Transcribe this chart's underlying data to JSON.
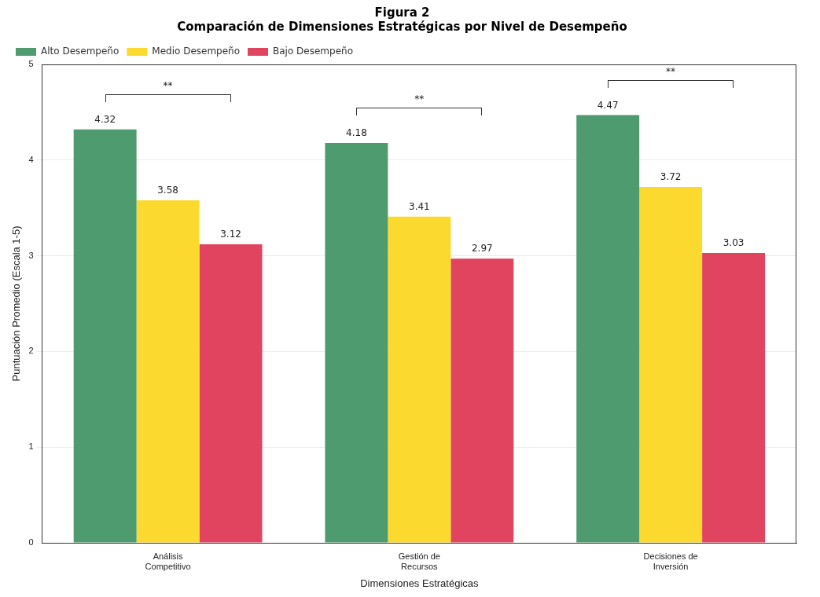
{
  "chart_data": {
    "type": "bar",
    "title": "Figura 2",
    "subtitle": "Comparación de Dimensiones Estratégicas por Nivel de Desempeño",
    "xlabel": "Dimensiones Estratégicas",
    "ylabel": "Puntuación Promedio (Escala 1-5)",
    "categories": [
      "Análisis Competitivo",
      "Gestión de Recursos",
      "Decisiones de Inversión"
    ],
    "series": [
      {
        "name": "Alto Desempeño",
        "color": "#4e9b6f",
        "values": [
          4.32,
          4.18,
          4.47
        ]
      },
      {
        "name": "Medio Desempeño",
        "color": "#fcd92e",
        "values": [
          3.58,
          3.41,
          3.72
        ]
      },
      {
        "name": "Bajo Desempeño",
        "color": "#e0445f",
        "values": [
          3.12,
          2.97,
          3.03
        ]
      }
    ],
    "ylim": [
      0,
      5
    ],
    "yticks": [
      0,
      1,
      2,
      3,
      4,
      5
    ],
    "grid": "y",
    "legend": "top left",
    "data_labels": true,
    "annotations": [
      "**",
      "**",
      "**"
    ]
  }
}
